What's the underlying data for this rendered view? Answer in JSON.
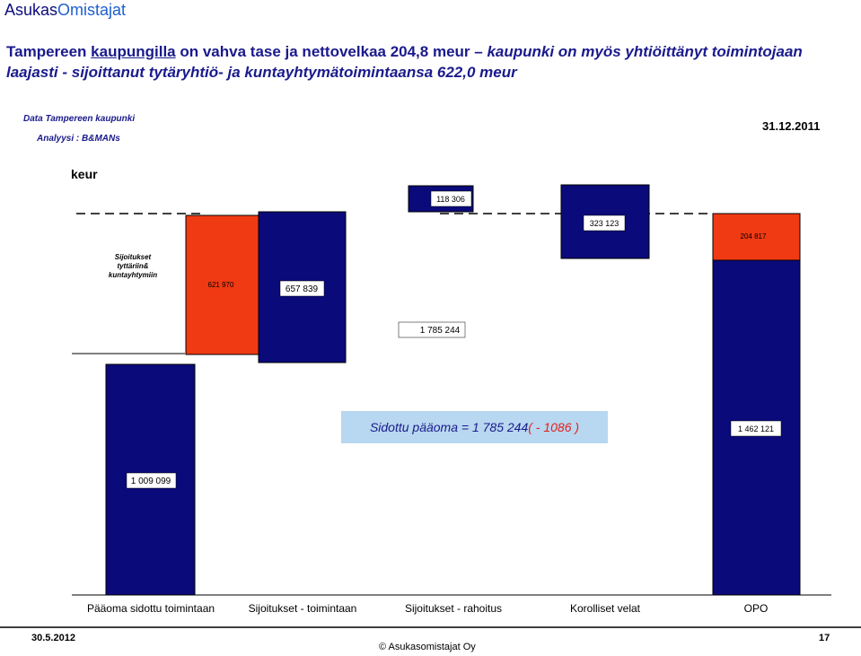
{
  "header": {
    "brand_part1": "Asukas",
    "brand_part2": "Omistajat",
    "title_part1": "Tampereen ",
    "title_part2": "kaupungilla",
    "title_part3": " on vahva tase ja nettovelkaa 204,8 meur  – ",
    "title_part4": "kaupunki on myös yhtiöittänyt toimintojaan laajasti  - sijoittanut tytäryhtiö- ja kuntayhtymätoimintaansa 622,0 meur",
    "data_source": "Data Tampereen kaupunki",
    "analysis": "Analyysi : B&MANs",
    "date": "31.12.2011"
  },
  "footer": {
    "date": "30.5.2012",
    "page": "17",
    "copyright": "© Asukasomistajat Oy"
  },
  "annotation": {
    "part1": "Sidottu pääoma  = 1 785 244 ",
    "part2": "( - 1086 )"
  },
  "colors": {
    "navy": "#0a0a7a",
    "red": "#f03a14",
    "callout": "#b8d7f0",
    "title": "#1a1a8c"
  },
  "chart_data": {
    "type": "bar",
    "subtype": "waterfall",
    "ylabel": "keur",
    "categories": [
      "Pääoma sidottu toimintaan",
      "Sijoitukset - toimintaan",
      "Sijoitukset - rahoitus",
      "Korolliset velat",
      "OPO"
    ],
    "bars": [
      {
        "name": "Pääoma sidottu toimintaan",
        "value": 1009099,
        "label": "1 009 099",
        "color": "navy",
        "start": 0,
        "end": 1009099
      },
      {
        "name": "Sijoitukset tyttäriin& kuntayhtymiin",
        "value": 621970,
        "label": "621 970",
        "color": "red",
        "start": 1009099,
        "end": 1631069,
        "bar_caption": "Sijoitukset tyttäriin& kuntayhtymiin"
      },
      {
        "name": "Sijoitukset - toimintaan",
        "value": 657839,
        "label": "657 839",
        "color": "navy",
        "start": 1009099,
        "end": 1666938
      },
      {
        "name": "Sijoitukset - rahoitus",
        "value": 118306,
        "label": "118 306",
        "color": "navy",
        "start": 1666938,
        "end": 1785244
      },
      {
        "name": "Sidottu pääoma",
        "value": 1785244,
        "label": "1 785 244",
        "color": "none"
      },
      {
        "name": "Korolliset velat",
        "value": 323123,
        "label": "323 123",
        "color": "navy",
        "start": 1785244,
        "end": 1462121
      },
      {
        "name": "OPO (red)",
        "value": 204817,
        "label": "204 817",
        "color": "red",
        "start": 1462121,
        "end": 1666938
      },
      {
        "name": "OPO",
        "value": 1462121,
        "label": "1 462 121",
        "color": "navy",
        "start": 0,
        "end": 1462121
      }
    ],
    "grid": false,
    "legend": "none"
  }
}
